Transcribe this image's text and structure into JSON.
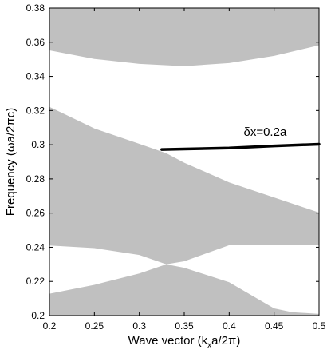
{
  "chart_data": {
    "type": "area",
    "xlabel": "Wave vector (k",
    "xlabel_sub": "x",
    "xlabel_tail": "a/2π)",
    "ylabel": "Frequency (ωa/2πc)",
    "xlim": [
      0.2,
      0.5
    ],
    "ylim": [
      0.2,
      0.38
    ],
    "x_ticks": [
      0.2,
      0.25,
      0.3,
      0.35,
      0.4,
      0.45,
      0.5
    ],
    "x_tick_labels": [
      "0.2",
      "0.25",
      "0.3",
      "0.35",
      "0.4",
      "0.45",
      "0.5"
    ],
    "y_ticks": [
      0.2,
      0.22,
      0.24,
      0.26,
      0.28,
      0.3,
      0.32,
      0.34,
      0.36,
      0.38
    ],
    "y_tick_labels": [
      "0.2",
      "0.22",
      "0.24",
      "0.26",
      "0.28",
      "0.3",
      "0.32",
      "0.34",
      "0.36",
      "0.38"
    ],
    "band_color": "#c0c0c0",
    "curve_color": "#000000",
    "bands": [
      {
        "x": [
          0.2,
          0.25,
          0.3,
          0.35,
          0.4,
          0.45,
          0.5
        ],
        "lower": [
          0.3552,
          0.3502,
          0.3473,
          0.346,
          0.3478,
          0.352,
          0.3582
        ],
        "upper": [
          0.38,
          0.38,
          0.38,
          0.38,
          0.38,
          0.38,
          0.38
        ]
      },
      {
        "x": [
          0.2,
          0.25,
          0.3,
          0.33,
          0.35,
          0.4,
          0.5
        ],
        "lower": [
          0.241,
          0.2395,
          0.2355,
          0.23,
          0.2318,
          0.2412,
          0.2412
        ],
        "upper": [
          0.3221,
          0.3095,
          0.3005,
          0.295,
          0.2895,
          0.278,
          0.2603
        ]
      },
      {
        "x": [
          0.2,
          0.25,
          0.3,
          0.33,
          0.35,
          0.4,
          0.45,
          0.47,
          0.5
        ],
        "lower": [
          0.2,
          0.2,
          0.2,
          0.2,
          0.2,
          0.2,
          0.2,
          0.2,
          0.2
        ],
        "upper": [
          0.2128,
          0.218,
          0.2247,
          0.23,
          0.228,
          0.2195,
          0.2042,
          0.202,
          0.201
        ]
      }
    ],
    "defect_mode": {
      "x": [
        0.325,
        0.35,
        0.4,
        0.45,
        0.5
      ],
      "y": [
        0.2972,
        0.2975,
        0.2981,
        0.2993,
        0.3003
      ]
    },
    "annotation": "δx=0.2a",
    "annotation_x": 0.44,
    "annotation_y": 0.3075,
    "grid": false,
    "legend": "none"
  }
}
